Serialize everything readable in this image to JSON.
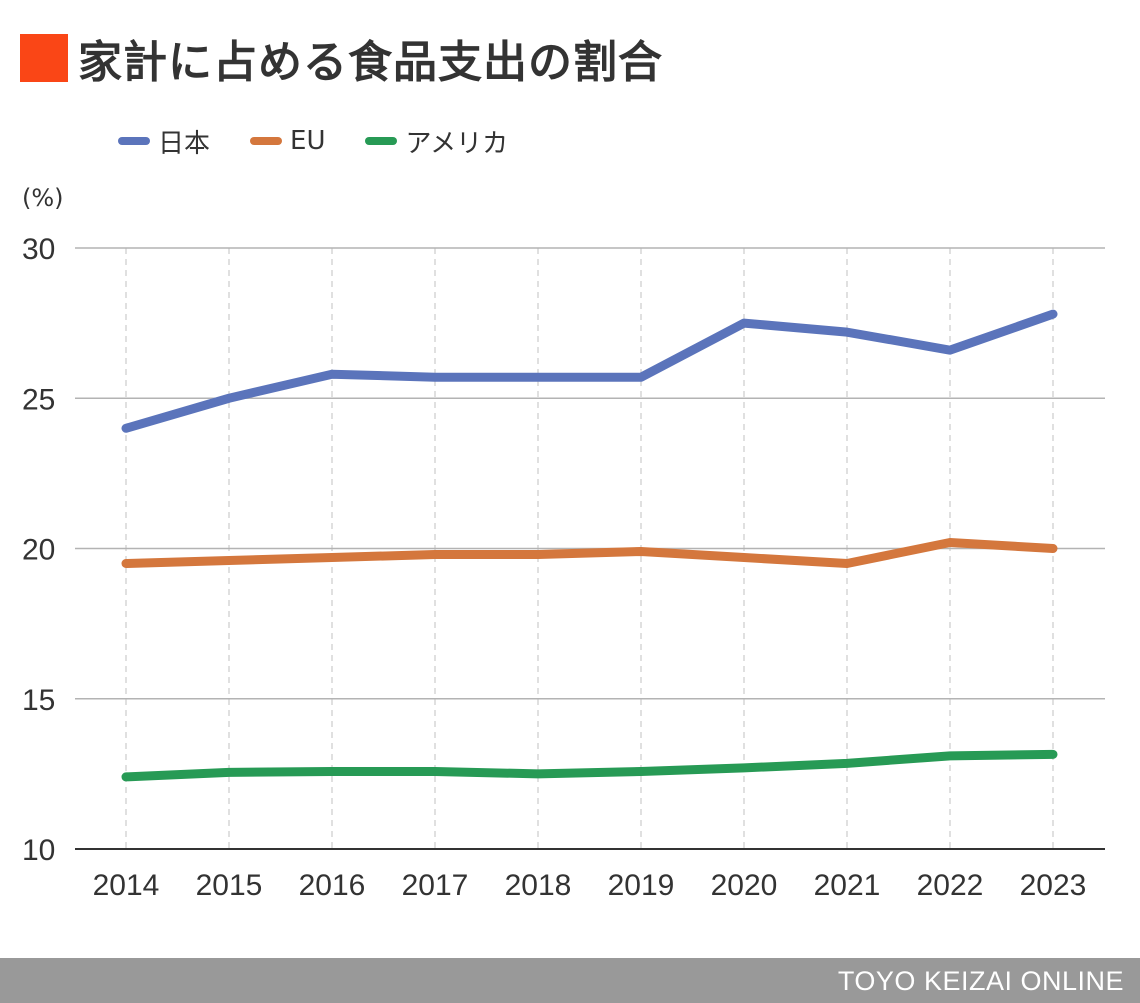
{
  "header": {
    "title": "家計に占める食品支出の割合",
    "accent_color": "#fa4616"
  },
  "legend": [
    {
      "label": "日本",
      "color": "#5b74bb"
    },
    {
      "label": "EU",
      "color": "#d4773d"
    },
    {
      "label": "アメリカ",
      "color": "#279a55"
    }
  ],
  "chart_data": {
    "type": "line",
    "title": "家計に占める食品支出の割合",
    "ylabel": "(%)",
    "xlabel": "",
    "x": [
      "2014",
      "2015",
      "2016",
      "2017",
      "2018",
      "2019",
      "2020",
      "2021",
      "2022",
      "2023"
    ],
    "ylim": [
      10,
      30
    ],
    "yticks": [
      10,
      15,
      20,
      25,
      30
    ],
    "grid": true,
    "legend_position": "top-left",
    "series": [
      {
        "name": "日本",
        "color": "#5b74bb",
        "values": [
          24.0,
          25.0,
          25.8,
          25.7,
          25.7,
          25.7,
          27.5,
          27.2,
          26.6,
          27.8
        ]
      },
      {
        "name": "EU",
        "color": "#d4773d",
        "values": [
          19.5,
          19.6,
          19.7,
          19.8,
          19.8,
          19.9,
          19.7,
          19.5,
          20.2,
          20.0
        ]
      },
      {
        "name": "アメリカ",
        "color": "#279a55",
        "values": [
          12.4,
          12.55,
          12.58,
          12.58,
          12.5,
          12.58,
          12.7,
          12.85,
          13.1,
          13.15
        ]
      }
    ]
  },
  "footer": {
    "brand": "TOYO KEIZAI ONLINE"
  }
}
